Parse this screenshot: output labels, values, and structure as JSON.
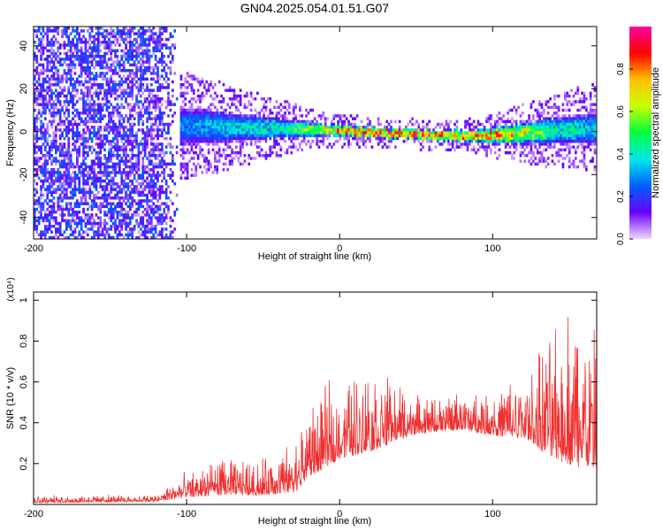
{
  "page": {
    "title": "GN04.2025.054.01.51.G07"
  },
  "chart_data": [
    {
      "type": "heatmap",
      "title": "GN04.2025.054.01.51.G07",
      "xlabel": "Height of straight line (km)",
      "ylabel": "Frequency (Hz)",
      "xlim": [
        -200,
        168
      ],
      "ylim": [
        -50,
        49
      ],
      "x_ticks": [
        -200,
        -100,
        0,
        100
      ],
      "y_ticks": [
        -40,
        -20,
        0,
        20,
        40
      ],
      "grid": false,
      "noise_region": {
        "x": [
          -200,
          -105
        ],
        "frequency": [
          -50,
          49
        ],
        "description_amplitude": [
          0.05,
          0.25
        ]
      },
      "signal_band": {
        "x": [
          -105,
          168
        ],
        "center_frequency_points": [
          {
            "x": -110,
            "f": 3
          },
          {
            "x": -90,
            "f": 3
          },
          {
            "x": -60,
            "f": 2.5
          },
          {
            "x": -30,
            "f": 2
          },
          {
            "x": 0,
            "f": 1
          },
          {
            "x": 30,
            "f": 0
          },
          {
            "x": 60,
            "f": -1
          },
          {
            "x": 90,
            "f": -1.5
          },
          {
            "x": 120,
            "f": 0
          },
          {
            "x": 150,
            "f": 1.5
          },
          {
            "x": 168,
            "f": 2
          }
        ],
        "half_width_points": [
          {
            "x": -105,
            "w": 10
          },
          {
            "x": -80,
            "w": 8
          },
          {
            "x": -40,
            "w": 5
          },
          {
            "x": -10,
            "w": 3
          },
          {
            "x": 40,
            "w": 2.5
          },
          {
            "x": 90,
            "w": 3
          },
          {
            "x": 130,
            "w": 6
          },
          {
            "x": 168,
            "w": 8
          }
        ],
        "peak_amplitude_points": [
          {
            "x": -105,
            "a": 0.3
          },
          {
            "x": -80,
            "a": 0.4
          },
          {
            "x": -40,
            "a": 0.5
          },
          {
            "x": -15,
            "a": 0.75
          },
          {
            "x": 0,
            "a": 0.9
          },
          {
            "x": 60,
            "a": 0.95
          },
          {
            "x": 110,
            "a": 0.85
          },
          {
            "x": 140,
            "a": 0.5
          },
          {
            "x": 168,
            "a": 0.4
          }
        ]
      },
      "colorbar": {
        "label": "Normalized spectral amplitude",
        "range": [
          0,
          1
        ],
        "ticks": [
          0.0,
          0.2,
          0.4,
          0.6,
          0.8
        ],
        "colors": [
          "#f0d6ff",
          "#6a00ff",
          "#0060ff",
          "#00e8e8",
          "#00ff40",
          "#c8ff00",
          "#ffc000",
          "#ff0000",
          "#ff00a0"
        ]
      }
    },
    {
      "type": "line",
      "xlabel": "Height of straight line (km)",
      "ylabel": "SNR (10 * v/v)",
      "y_multiplier": "(x10⁴)",
      "xlim": [
        -200,
        168
      ],
      "ylim": [
        0,
        1.04
      ],
      "x_ticks": [
        -200,
        -100,
        0,
        100
      ],
      "y_ticks": [
        0.2,
        0.4,
        0.6,
        0.8,
        1.0
      ],
      "grid": false,
      "color": "#f03030",
      "envelope": [
        {
          "x": -200,
          "base": 0.015,
          "spread": 0.02
        },
        {
          "x": -120,
          "base": 0.02,
          "spread": 0.02
        },
        {
          "x": -105,
          "base": 0.05,
          "spread": 0.06
        },
        {
          "x": -80,
          "base": 0.08,
          "spread": 0.1
        },
        {
          "x": -50,
          "base": 0.08,
          "spread": 0.1
        },
        {
          "x": -30,
          "base": 0.1,
          "spread": 0.14
        },
        {
          "x": -20,
          "base": 0.2,
          "spread": 0.2
        },
        {
          "x": 0,
          "base": 0.3,
          "spread": 0.22
        },
        {
          "x": 20,
          "base": 0.34,
          "spread": 0.24
        },
        {
          "x": 50,
          "base": 0.38,
          "spread": 0.1
        },
        {
          "x": 80,
          "base": 0.4,
          "spread": 0.1
        },
        {
          "x": 100,
          "base": 0.38,
          "spread": 0.12
        },
        {
          "x": 125,
          "base": 0.38,
          "spread": 0.2
        },
        {
          "x": 135,
          "base": 0.35,
          "spread": 0.32
        },
        {
          "x": 150,
          "base": 0.35,
          "spread": 0.45
        },
        {
          "x": 168,
          "base": 0.3,
          "spread": 0.4
        }
      ]
    }
  ]
}
